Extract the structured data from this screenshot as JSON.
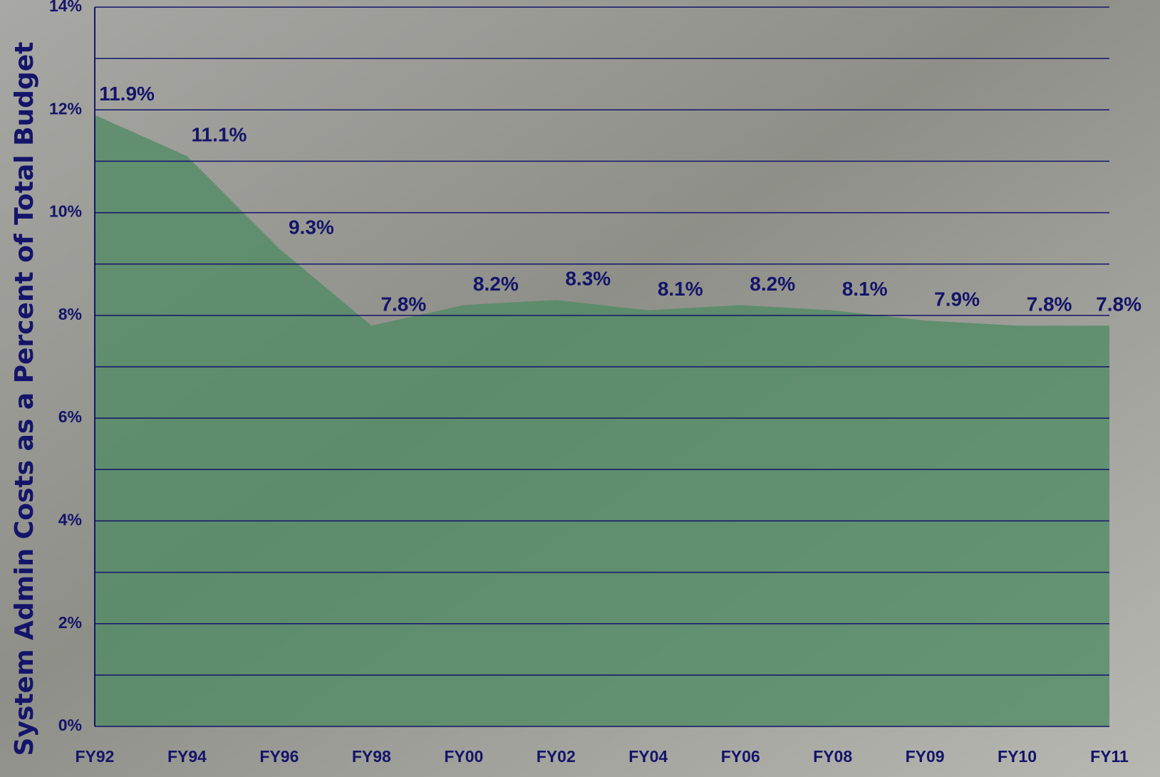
{
  "chart_data": {
    "type": "area",
    "y_label": "System Admin Costs as a Percent of Total Budget",
    "categories": [
      "FY92",
      "FY94",
      "FY96",
      "FY98",
      "FY00",
      "FY02",
      "FY04",
      "FY06",
      "FY08",
      "FY09",
      "FY10",
      "FY11"
    ],
    "values": [
      11.9,
      11.1,
      9.3,
      7.8,
      8.2,
      8.3,
      8.1,
      8.2,
      8.1,
      7.9,
      7.8,
      7.8
    ],
    "value_labels": [
      "11.9%",
      "11.1%",
      "9.3%",
      "7.8%",
      "8.2%",
      "8.3%",
      "8.1%",
      "8.2%",
      "8.1%",
      "7.9%",
      "7.8%",
      "7.8%"
    ],
    "color": "#4f8a64",
    "ylim": [
      0,
      14
    ],
    "yticks": [
      {
        "value": 0,
        "label": "0%"
      },
      {
        "value": 2,
        "label": "2%"
      },
      {
        "value": 4,
        "label": "4%"
      },
      {
        "value": 6,
        "label": "6%"
      },
      {
        "value": 8,
        "label": "8%"
      },
      {
        "value": 10,
        "label": "10%"
      },
      {
        "value": 12,
        "label": "12%"
      },
      {
        "value": 14,
        "label": "14%"
      }
    ],
    "minor_yticks": [
      1,
      3,
      5,
      7,
      9,
      11,
      13
    ],
    "grid": true
  }
}
